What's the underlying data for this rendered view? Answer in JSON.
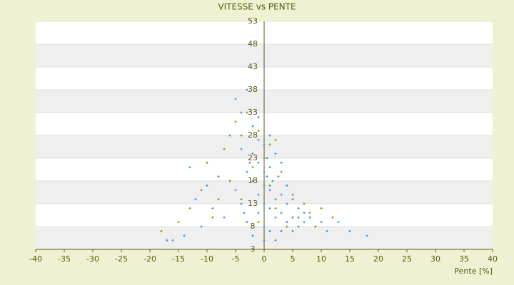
{
  "chart_data": {
    "type": "scatter",
    "title": "VITESSE vs PENTE",
    "x_label": "Pente [%]",
    "xlim": [
      -40,
      40
    ],
    "xticks": [
      -40,
      -35,
      -30,
      -25,
      -20,
      -15,
      -10,
      -5,
      0,
      5,
      10,
      15,
      20,
      25,
      30,
      35,
      40
    ],
    "ylim": [
      3,
      53
    ],
    "yticks": [
      3,
      8,
      13,
      18,
      23,
      28,
      33,
      38,
      43,
      48,
      53
    ],
    "grid": true,
    "series": [
      {
        "color": "#3b8ed6",
        "x": [
          -14,
          -13,
          -12,
          -11,
          -10,
          -9,
          -8,
          -7,
          -6,
          -5,
          -5,
          -4,
          -4,
          -3,
          -3,
          -3,
          -2,
          -2,
          -2,
          -2,
          -1,
          -1,
          -1,
          -1,
          -1,
          0,
          0,
          0,
          0,
          0,
          0,
          0.5,
          0.5,
          1,
          1,
          1,
          1,
          1,
          1.5,
          2,
          2,
          2,
          2,
          2.5,
          3,
          3,
          3,
          3,
          4,
          4,
          4,
          5,
          5,
          5,
          6,
          6,
          7,
          7,
          8,
          9,
          10,
          11,
          13,
          15,
          18,
          -16,
          -17,
          -4,
          -3.5,
          -2.5
        ],
        "values": [
          6,
          21,
          14,
          8,
          17,
          12,
          19,
          10,
          28,
          16,
          36,
          25,
          13,
          38,
          20,
          9,
          30,
          18,
          24,
          6,
          27,
          22,
          15,
          11,
          32,
          26,
          20,
          17,
          13,
          8,
          5,
          23,
          19,
          28,
          21,
          16,
          12,
          7,
          18,
          24,
          14,
          10,
          5,
          19,
          22,
          15,
          11,
          7,
          17,
          13,
          9,
          14,
          10,
          7,
          12,
          8,
          11,
          9,
          10,
          8,
          9,
          7,
          9,
          7,
          6,
          5,
          5,
          33,
          11,
          22
        ]
      },
      {
        "color": "#8f8f10",
        "x": [
          -18,
          -15,
          -13,
          -11,
          -10,
          -9,
          -7,
          -6,
          -5,
          -4,
          -4,
          -3,
          -2,
          -1,
          -1,
          0,
          1,
          1,
          2,
          2,
          3,
          4,
          5,
          6,
          7,
          8,
          9,
          10,
          12,
          -8
        ],
        "values": [
          7,
          9,
          12,
          16,
          22,
          10,
          25,
          18,
          31,
          28,
          14,
          33,
          21,
          29,
          9,
          23,
          26,
          17,
          27,
          12,
          20,
          8,
          15,
          10,
          13,
          11,
          8,
          12,
          10,
          14
        ]
      }
    ]
  }
}
